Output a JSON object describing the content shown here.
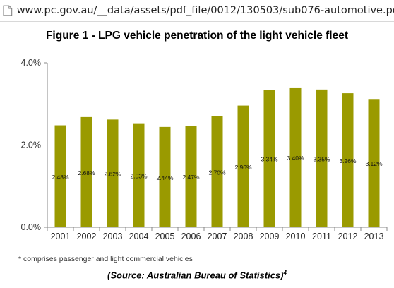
{
  "browser": {
    "url": "www.pc.gov.au/__data/assets/pdf_file/0012/130503/sub076-automotive.pdf"
  },
  "footnote": "* comprises passenger and light commercial vehicles",
  "source": {
    "text": "(Source: Australian Bureau of Statistics)",
    "superscript": "4"
  },
  "colors": {
    "bar": "#9a9a00",
    "axis": "#888888"
  },
  "chart_data": {
    "type": "bar",
    "title": "Figure 1 - LPG vehicle penetration of the light vehicle fleet",
    "xlabel": "",
    "ylabel": "",
    "categories": [
      "2001",
      "2002",
      "2003",
      "2004",
      "2005",
      "2006",
      "2007",
      "2008",
      "2009",
      "2010",
      "2011",
      "2012",
      "2013"
    ],
    "values": [
      2.48,
      2.68,
      2.62,
      2.53,
      2.44,
      2.47,
      2.7,
      2.96,
      3.34,
      3.4,
      3.35,
      3.26,
      3.12
    ],
    "data_labels": [
      "2.48%",
      "2.68%",
      "2.62%",
      "2.53%",
      "2.44%",
      "2.47%",
      "2.70%",
      "2.96%",
      "3.34%",
      "3.40%",
      "3.35%",
      "3.26%",
      "3.12%"
    ],
    "ylim": [
      0,
      4
    ],
    "yticks": [
      0,
      2,
      4
    ],
    "ytick_labels": [
      "0.0%",
      "2.0%",
      "4.0%"
    ],
    "grid": false,
    "legend": "none"
  }
}
